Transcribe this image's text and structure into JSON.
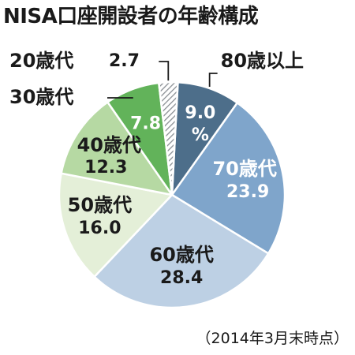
{
  "title": "NISA口座開設者の年齢構成",
  "note": "（2014年3月末時点）",
  "chart_data": {
    "type": "pie",
    "title": "NISA口座開設者の年齢構成",
    "unit": "%",
    "slices": [
      {
        "label": "80歳以上",
        "value": 9.0,
        "value_text": "9.0",
        "unit_text": "%",
        "color": "#4d6e8a"
      },
      {
        "label": "70歳代",
        "value": 23.9,
        "value_text": "23.9",
        "color": "#7fa5cb"
      },
      {
        "label": "60歳代",
        "value": 28.4,
        "value_text": "28.4",
        "color": "#bdd0e4"
      },
      {
        "label": "50歳代",
        "value": 16.0,
        "value_text": "16.0",
        "color": "#e4efd8"
      },
      {
        "label": "40歳代",
        "value": 12.3,
        "value_text": "12.3",
        "color": "#b6d9a3"
      },
      {
        "label": "30歳代",
        "value": 7.8,
        "value_text": "7.8",
        "color": "#62b35a"
      },
      {
        "label": "20歳代",
        "value": 2.7,
        "value_text": "2.7",
        "color": "#9aa0a6",
        "pattern": "hatched"
      }
    ]
  }
}
